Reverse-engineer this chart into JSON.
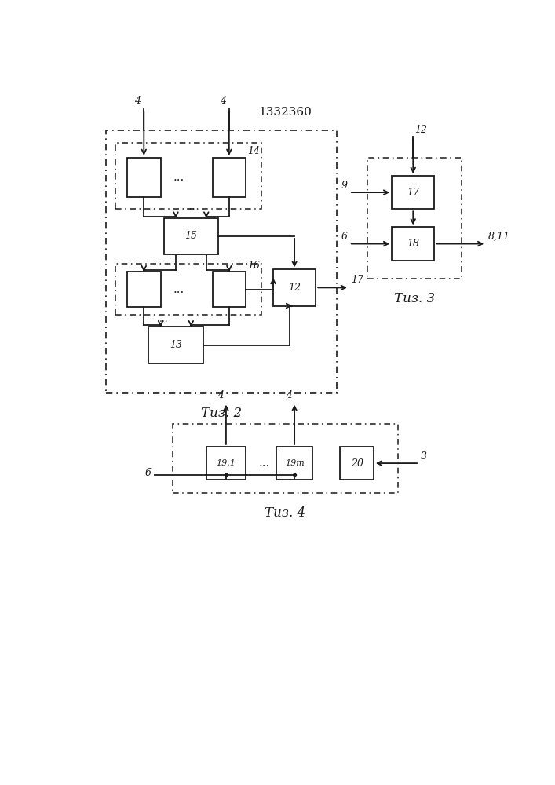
{
  "title": "1332360",
  "fig2_label": "Τиз. 2",
  "fig3_label": "Τиз. 3",
  "fig4_label": "Τиз. 4",
  "bg_color": "#ffffff",
  "line_color": "#1a1a1a",
  "box_color": "#ffffff"
}
